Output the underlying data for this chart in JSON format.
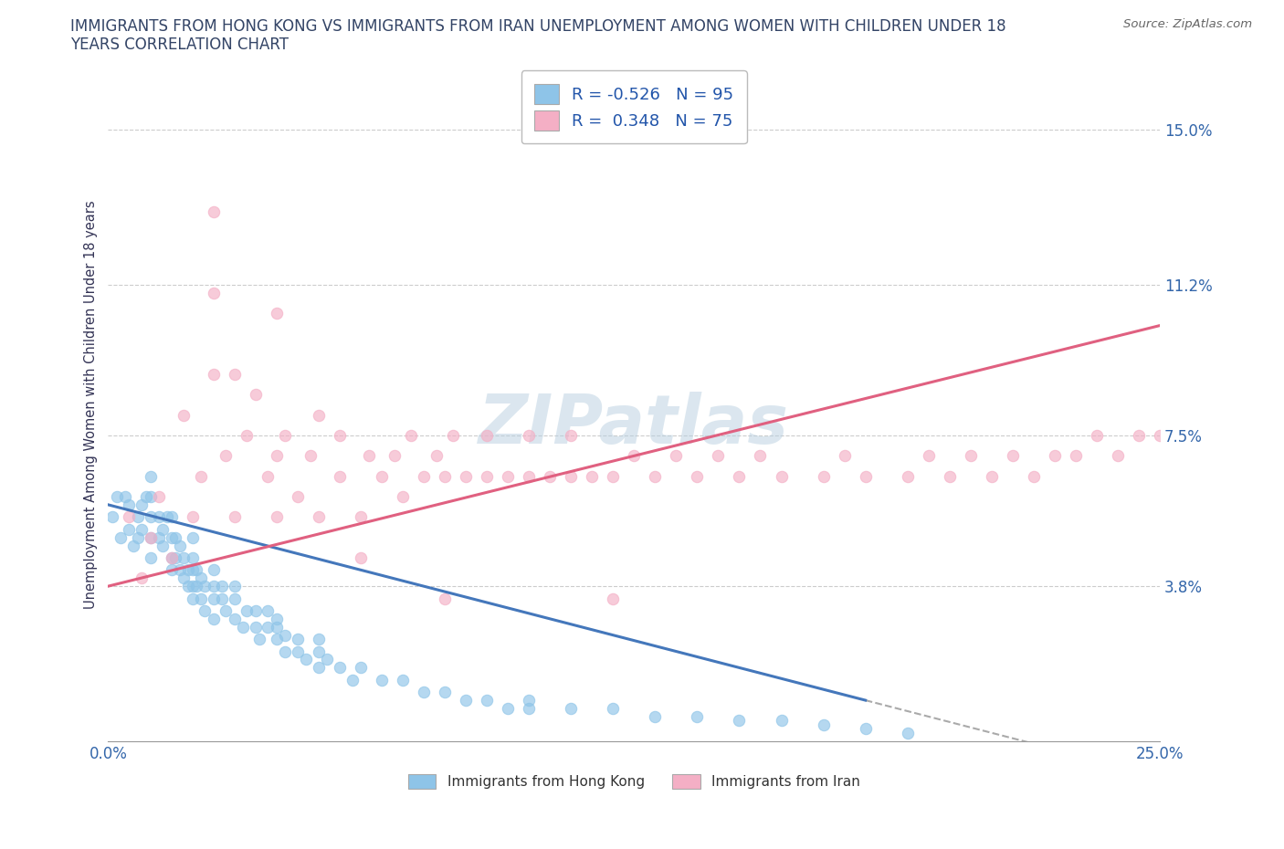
{
  "title_line1": "IMMIGRANTS FROM HONG KONG VS IMMIGRANTS FROM IRAN UNEMPLOYMENT AMONG WOMEN WITH CHILDREN UNDER 18",
  "title_line2": "YEARS CORRELATION CHART",
  "source": "Source: ZipAtlas.com",
  "ylabel": "Unemployment Among Women with Children Under 18 years",
  "x_min": 0.0,
  "x_max": 0.25,
  "y_min": 0.0,
  "y_max": 0.165,
  "y_ticks": [
    0.038,
    0.075,
    0.112,
    0.15
  ],
  "y_tick_labels": [
    "3.8%",
    "7.5%",
    "11.2%",
    "15.0%"
  ],
  "x_ticks": [
    0.0,
    0.05,
    0.1,
    0.15,
    0.2,
    0.25
  ],
  "x_tick_labels": [
    "0.0%",
    "",
    "",
    "",
    "",
    "25.0%"
  ],
  "legend_labels": [
    "Immigrants from Hong Kong",
    "Immigrants from Iran"
  ],
  "legend_R": [
    -0.526,
    0.348
  ],
  "legend_N": [
    95,
    75
  ],
  "color_hk": "#8ec4e8",
  "color_iran": "#f4afc5",
  "color_hk_line": "#4477bb",
  "color_iran_line": "#e06080",
  "watermark": "ZIPatlas",
  "background_color": "#ffffff",
  "hk_x": [
    0.001,
    0.002,
    0.003,
    0.004,
    0.005,
    0.005,
    0.006,
    0.007,
    0.007,
    0.008,
    0.008,
    0.009,
    0.01,
    0.01,
    0.01,
    0.01,
    0.01,
    0.012,
    0.012,
    0.013,
    0.013,
    0.014,
    0.015,
    0.015,
    0.015,
    0.015,
    0.016,
    0.016,
    0.017,
    0.017,
    0.018,
    0.018,
    0.019,
    0.019,
    0.02,
    0.02,
    0.02,
    0.02,
    0.02,
    0.021,
    0.021,
    0.022,
    0.022,
    0.023,
    0.023,
    0.025,
    0.025,
    0.025,
    0.025,
    0.027,
    0.027,
    0.028,
    0.03,
    0.03,
    0.03,
    0.032,
    0.033,
    0.035,
    0.035,
    0.036,
    0.038,
    0.038,
    0.04,
    0.04,
    0.04,
    0.042,
    0.042,
    0.045,
    0.045,
    0.047,
    0.05,
    0.05,
    0.05,
    0.052,
    0.055,
    0.058,
    0.06,
    0.065,
    0.07,
    0.075,
    0.08,
    0.085,
    0.09,
    0.095,
    0.1,
    0.1,
    0.11,
    0.12,
    0.13,
    0.14,
    0.15,
    0.16,
    0.17,
    0.18,
    0.19
  ],
  "hk_y": [
    0.055,
    0.06,
    0.05,
    0.06,
    0.052,
    0.058,
    0.048,
    0.055,
    0.05,
    0.052,
    0.058,
    0.06,
    0.045,
    0.05,
    0.055,
    0.06,
    0.065,
    0.05,
    0.055,
    0.048,
    0.052,
    0.055,
    0.042,
    0.045,
    0.05,
    0.055,
    0.045,
    0.05,
    0.042,
    0.048,
    0.04,
    0.045,
    0.038,
    0.042,
    0.038,
    0.042,
    0.045,
    0.05,
    0.035,
    0.038,
    0.042,
    0.035,
    0.04,
    0.032,
    0.038,
    0.035,
    0.038,
    0.042,
    0.03,
    0.035,
    0.038,
    0.032,
    0.03,
    0.035,
    0.038,
    0.028,
    0.032,
    0.028,
    0.032,
    0.025,
    0.028,
    0.032,
    0.025,
    0.028,
    0.03,
    0.022,
    0.026,
    0.022,
    0.025,
    0.02,
    0.022,
    0.025,
    0.018,
    0.02,
    0.018,
    0.015,
    0.018,
    0.015,
    0.015,
    0.012,
    0.012,
    0.01,
    0.01,
    0.008,
    0.008,
    0.01,
    0.008,
    0.008,
    0.006,
    0.006,
    0.005,
    0.005,
    0.004,
    0.003,
    0.002
  ],
  "iran_x": [
    0.005,
    0.008,
    0.01,
    0.012,
    0.015,
    0.018,
    0.02,
    0.022,
    0.025,
    0.025,
    0.028,
    0.03,
    0.03,
    0.033,
    0.035,
    0.038,
    0.04,
    0.04,
    0.042,
    0.045,
    0.048,
    0.05,
    0.05,
    0.055,
    0.055,
    0.06,
    0.062,
    0.065,
    0.068,
    0.07,
    0.072,
    0.075,
    0.078,
    0.08,
    0.082,
    0.085,
    0.09,
    0.09,
    0.095,
    0.1,
    0.1,
    0.105,
    0.11,
    0.11,
    0.115,
    0.12,
    0.125,
    0.13,
    0.135,
    0.14,
    0.145,
    0.15,
    0.155,
    0.16,
    0.17,
    0.175,
    0.18,
    0.19,
    0.195,
    0.2,
    0.205,
    0.21,
    0.215,
    0.22,
    0.225,
    0.23,
    0.235,
    0.24,
    0.245,
    0.25,
    0.025,
    0.04,
    0.06,
    0.08,
    0.12
  ],
  "iran_y": [
    0.055,
    0.04,
    0.05,
    0.06,
    0.045,
    0.08,
    0.055,
    0.065,
    0.09,
    0.11,
    0.07,
    0.055,
    0.09,
    0.075,
    0.085,
    0.065,
    0.055,
    0.07,
    0.075,
    0.06,
    0.07,
    0.055,
    0.08,
    0.065,
    0.075,
    0.055,
    0.07,
    0.065,
    0.07,
    0.06,
    0.075,
    0.065,
    0.07,
    0.065,
    0.075,
    0.065,
    0.065,
    0.075,
    0.065,
    0.065,
    0.075,
    0.065,
    0.065,
    0.075,
    0.065,
    0.065,
    0.07,
    0.065,
    0.07,
    0.065,
    0.07,
    0.065,
    0.07,
    0.065,
    0.065,
    0.07,
    0.065,
    0.065,
    0.07,
    0.065,
    0.07,
    0.065,
    0.07,
    0.065,
    0.07,
    0.07,
    0.075,
    0.07,
    0.075,
    0.075,
    0.13,
    0.105,
    0.045,
    0.035,
    0.035
  ],
  "hk_trend_x0": 0.0,
  "hk_trend_x1": 0.18,
  "hk_trend_y0": 0.058,
  "hk_trend_y1": 0.01,
  "iran_trend_x0": 0.0,
  "iran_trend_x1": 0.25,
  "iran_trend_y0": 0.038,
  "iran_trend_y1": 0.102
}
